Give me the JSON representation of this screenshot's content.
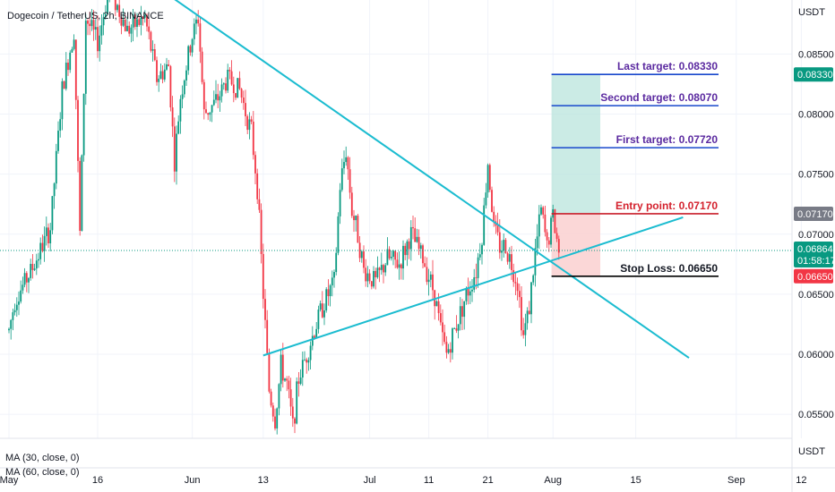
{
  "chart_data": {
    "type": "candlestick",
    "title": "Dogecoin / TetherUS, 2h, BINANCE",
    "y_unit": "USDT",
    "ylim": [
      0.053,
      0.0895
    ],
    "yticks": [
      "0.08500",
      "0.08000",
      "0.07500",
      "0.07000",
      "0.06500",
      "0.06000",
      "0.05500"
    ],
    "x_ticks": [
      "May",
      "16",
      "Jun",
      "13",
      "Jul",
      "11",
      "21",
      "Aug",
      "15",
      "Sep",
      "12"
    ],
    "x_axis_range": [
      "May 1",
      "Sep 14"
    ],
    "current_price": "0.06864",
    "countdown": "01:58:17",
    "price_level_labels": [
      {
        "text": "Last target: 0.08330",
        "value": 0.0833,
        "color": "#5b2aa0",
        "line_color": "#1848cc"
      },
      {
        "text": "Second target: 0.08070",
        "value": 0.0807,
        "color": "#5b2aa0",
        "line_color": "#1848cc"
      },
      {
        "text": "First target: 0.07720",
        "value": 0.0772,
        "color": "#5b2aa0",
        "line_color": "#1848cc"
      },
      {
        "text": "Entry point: 0.07170",
        "value": 0.0717,
        "color": "#d4222e",
        "line_color": "#c81e2a"
      },
      {
        "text": "Stop Loss: 0.06650",
        "value": 0.0665,
        "color": "#131722",
        "line_color": "#000000"
      }
    ],
    "axis_badges": [
      {
        "text": "0.08330",
        "value": 0.0833,
        "color": "#089981"
      },
      {
        "text": "0.07170",
        "value": 0.0717,
        "color": "#787b86"
      },
      {
        "text": "0.06650",
        "value": 0.0665,
        "color": "#f23645"
      }
    ],
    "trendlines": [
      {
        "name": "descending",
        "from": [
          "May 26",
          0.0906
        ],
        "to": [
          "Aug 24",
          0.0597
        ],
        "color": "#1bbcd0"
      },
      {
        "name": "ascending",
        "from": [
          "Jun 13",
          0.0599
        ],
        "to": [
          "Aug 23",
          0.0714
        ],
        "color": "#1bbcd0"
      }
    ],
    "indicators": [
      "MA (30, close, 0)",
      "MA (60, close, 0)"
    ],
    "indicator_axis_unit": "USDT",
    "price_path": [
      {
        "x": "May 1",
        "y": 0.062
      },
      {
        "x": "May 2",
        "y": 0.0645
      },
      {
        "x": "May 5",
        "y": 0.0672
      },
      {
        "x": "May 8",
        "y": 0.0705
      },
      {
        "x": "May 10",
        "y": 0.082
      },
      {
        "x": "May 12",
        "y": 0.087
      },
      {
        "x": "May 13",
        "y": 0.07
      },
      {
        "x": "May 14",
        "y": 0.088
      },
      {
        "x": "May 16",
        "y": 0.086
      },
      {
        "x": "May 18",
        "y": 0.0905
      },
      {
        "x": "May 21",
        "y": 0.087
      },
      {
        "x": "May 24",
        "y": 0.088
      },
      {
        "x": "May 26",
        "y": 0.083
      },
      {
        "x": "May 28",
        "y": 0.084
      },
      {
        "x": "May 29",
        "y": 0.076
      },
      {
        "x": "May 30",
        "y": 0.0815
      },
      {
        "x": "Jun 1",
        "y": 0.0865
      },
      {
        "x": "Jun 2",
        "y": 0.088
      },
      {
        "x": "Jun 3",
        "y": 0.08
      },
      {
        "x": "Jun 5",
        "y": 0.081
      },
      {
        "x": "Jun 7",
        "y": 0.083
      },
      {
        "x": "Jun 9",
        "y": 0.082
      },
      {
        "x": "Jun 11",
        "y": 0.0785
      },
      {
        "x": "Jun 12",
        "y": 0.074
      },
      {
        "x": "Jun 13",
        "y": 0.065
      },
      {
        "x": "Jun 14",
        "y": 0.057
      },
      {
        "x": "Jun 15",
        "y": 0.0545
      },
      {
        "x": "Jun 16",
        "y": 0.059
      },
      {
        "x": "Jun 17",
        "y": 0.0575
      },
      {
        "x": "Jun 18",
        "y": 0.054
      },
      {
        "x": "Jun 19",
        "y": 0.058
      },
      {
        "x": "Jun 21",
        "y": 0.061
      },
      {
        "x": "Jun 23",
        "y": 0.064
      },
      {
        "x": "Jun 25",
        "y": 0.066
      },
      {
        "x": "Jun 26",
        "y": 0.074
      },
      {
        "x": "Jun 27",
        "y": 0.077
      },
      {
        "x": "Jun 28",
        "y": 0.072
      },
      {
        "x": "Jun 29",
        "y": 0.07
      },
      {
        "x": "Jun 30",
        "y": 0.067
      },
      {
        "x": "Jul 2",
        "y": 0.066
      },
      {
        "x": "Jul 4",
        "y": 0.068
      },
      {
        "x": "Jul 6",
        "y": 0.0675
      },
      {
        "x": "Jul 8",
        "y": 0.07
      },
      {
        "x": "Jul 10",
        "y": 0.068
      },
      {
        "x": "Jul 12",
        "y": 0.065
      },
      {
        "x": "Jul 13",
        "y": 0.062
      },
      {
        "x": "Jul 14",
        "y": 0.06
      },
      {
        "x": "Jul 15",
        "y": 0.0615
      },
      {
        "x": "Jul 17",
        "y": 0.0645
      },
      {
        "x": "Jul 19",
        "y": 0.067
      },
      {
        "x": "Jul 20",
        "y": 0.07
      },
      {
        "x": "Jul 21",
        "y": 0.076
      },
      {
        "x": "Jul 22",
        "y": 0.0705
      },
      {
        "x": "Jul 23",
        "y": 0.069
      },
      {
        "x": "Jul 24",
        "y": 0.069
      },
      {
        "x": "Jul 26",
        "y": 0.066
      },
      {
        "x": "Jul 27",
        "y": 0.0615
      },
      {
        "x": "Jul 28",
        "y": 0.064
      },
      {
        "x": "Jul 29",
        "y": 0.0685
      },
      {
        "x": "Jul 30",
        "y": 0.072
      },
      {
        "x": "Jul 31",
        "y": 0.069
      },
      {
        "x": "Aug 1",
        "y": 0.0715
      },
      {
        "x": "Aug 2",
        "y": 0.0686
      }
    ]
  }
}
